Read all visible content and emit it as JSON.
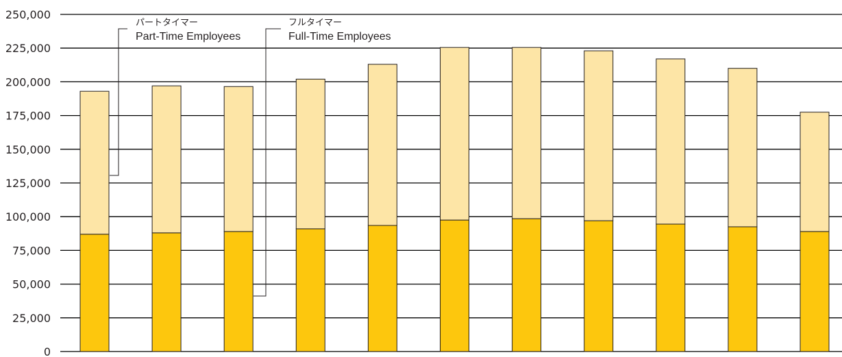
{
  "chart_data": {
    "type": "bar",
    "stacked": true,
    "title": "",
    "xlabel": "",
    "ylabel": "",
    "categories": [
      "",
      "",
      "",
      "",
      "",
      "",
      "",
      "",
      "",
      "",
      ""
    ],
    "ylim": [
      0,
      250000
    ],
    "yticks": [
      0,
      25000,
      50000,
      75000,
      100000,
      125000,
      150000,
      175000,
      200000,
      225000,
      250000
    ],
    "ytick_labels": [
      "0",
      "25,000",
      "50,000",
      "75,000",
      "100,000",
      "125,000",
      "150,000",
      "175,000",
      "200,000",
      "225,000",
      "250,000"
    ],
    "grid": true,
    "series": [
      {
        "key": "full",
        "name_jp": "フルタイマー",
        "name": "Full-Time Employees",
        "color": "#fdc70d",
        "values": [
          87000,
          88000,
          89000,
          91000,
          93500,
          97500,
          98500,
          97000,
          94500,
          92500,
          89000
        ]
      },
      {
        "key": "part",
        "name_jp": "パートタイマー",
        "name": "Part-Time Employees",
        "color": "#fde5a6",
        "values": [
          106000,
          109000,
          107500,
          111000,
          119500,
          128000,
          127000,
          126000,
          122500,
          117500,
          88500
        ]
      }
    ],
    "legend": [
      {
        "series": "part",
        "jp": "パートタイマー",
        "en": "Part-Time Employees",
        "placement": "top-left"
      },
      {
        "series": "full",
        "jp": "フルタイマー",
        "en": "Full-Time Employees",
        "placement": "top-center"
      }
    ]
  }
}
